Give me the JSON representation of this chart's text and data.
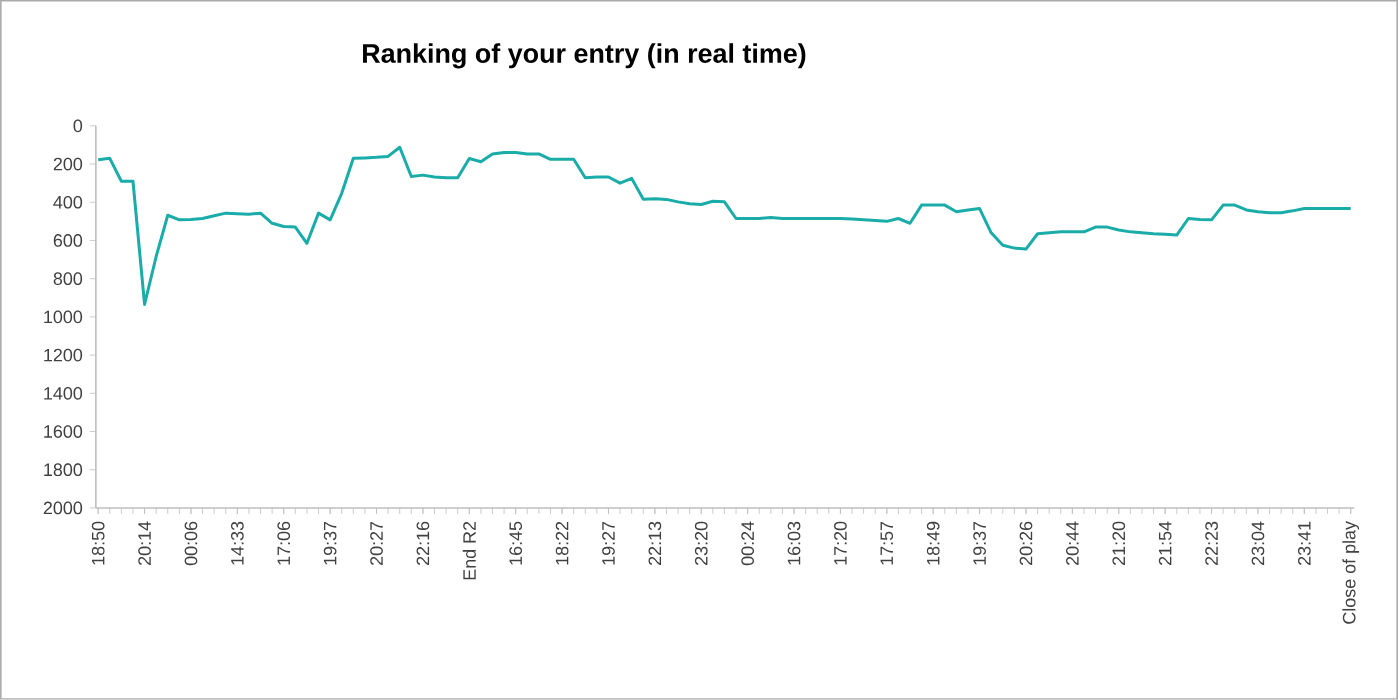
{
  "chart_data": {
    "type": "line",
    "title": "Ranking of your entry (in real time)",
    "categories": [
      "18:50",
      null,
      null,
      null,
      "20:14",
      null,
      null,
      null,
      "00:06",
      null,
      null,
      null,
      "14:33",
      null,
      null,
      null,
      "17:06",
      null,
      null,
      null,
      "19:37",
      null,
      null,
      null,
      "20:27",
      null,
      null,
      null,
      "22:16",
      null,
      null,
      null,
      "End R2",
      null,
      null,
      null,
      "16:45",
      null,
      null,
      null,
      "18:22",
      null,
      null,
      null,
      "19:27",
      null,
      null,
      null,
      "22:13",
      null,
      null,
      null,
      "23:20",
      null,
      null,
      null,
      "00:24",
      null,
      null,
      null,
      "16:03",
      null,
      null,
      null,
      "17:20",
      null,
      null,
      null,
      "17:57",
      null,
      null,
      null,
      "18:49",
      null,
      null,
      null,
      "19:37",
      null,
      null,
      null,
      "20:26",
      null,
      null,
      null,
      "20:44",
      null,
      null,
      null,
      "21:20",
      null,
      null,
      null,
      "21:54",
      null,
      null,
      null,
      "22:23",
      null,
      null,
      null,
      "23:04",
      null,
      null,
      null,
      "23:41",
      null,
      null,
      null,
      "Close of play"
    ],
    "values": [
      178,
      170,
      290,
      290,
      935,
      684,
      468,
      492,
      490,
      485,
      471,
      457,
      460,
      463,
      457,
      510,
      527,
      530,
      615,
      457,
      492,
      353,
      170,
      168,
      165,
      160,
      112,
      265,
      258,
      268,
      272,
      272,
      171,
      188,
      147,
      140,
      140,
      147,
      147,
      175,
      175,
      175,
      272,
      268,
      268,
      300,
      275,
      384,
      382,
      385,
      398,
      408,
      412,
      395,
      398,
      485,
      485,
      485,
      480,
      485,
      485,
      485,
      485,
      485,
      485,
      488,
      492,
      495,
      500,
      485,
      510,
      415,
      415,
      415,
      450,
      440,
      433,
      560,
      625,
      640,
      645,
      565,
      560,
      555,
      555,
      555,
      530,
      530,
      545,
      555,
      560,
      565,
      568,
      572,
      485,
      490,
      492,
      415,
      415,
      440,
      450,
      455,
      455,
      445,
      433,
      433,
      433,
      433,
      433
    ],
    "color": "#1aaca8",
    "ylim": [
      2000,
      0
    ],
    "yticks": [
      0,
      200,
      400,
      600,
      800,
      1000,
      1200,
      1400,
      1600,
      1800,
      2000
    ]
  }
}
